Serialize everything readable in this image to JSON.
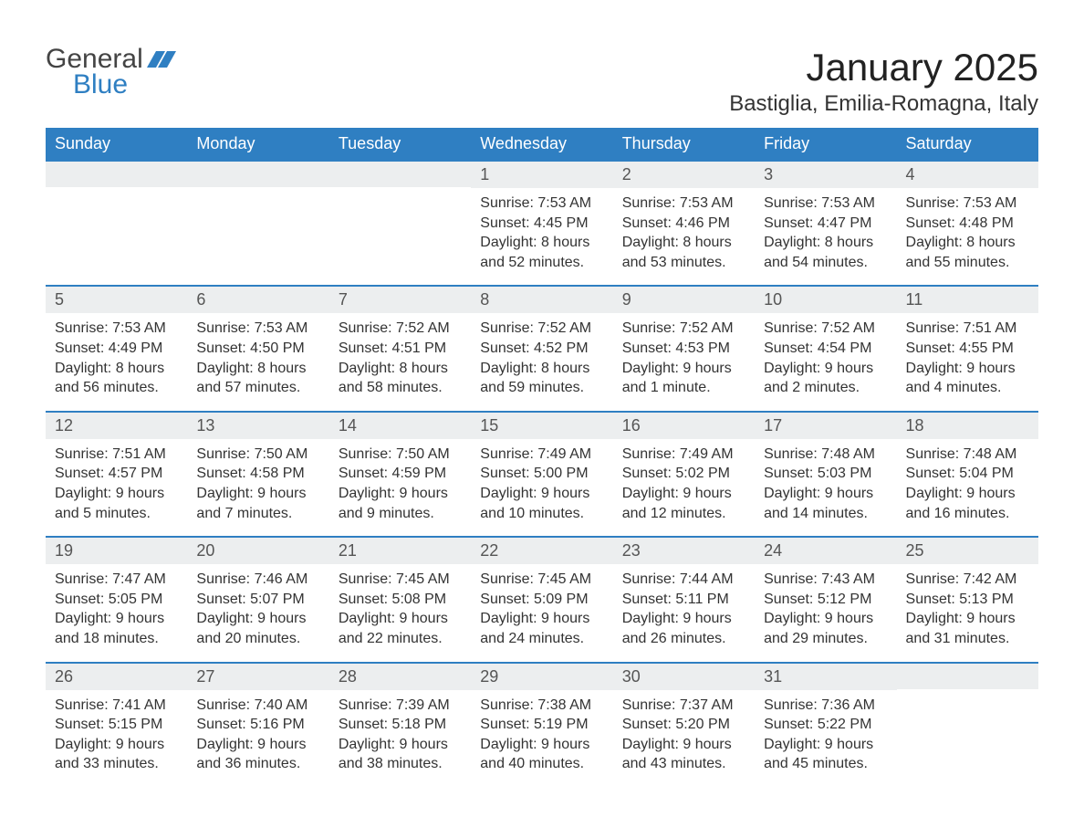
{
  "logo": {
    "general": "General",
    "blue": "Blue"
  },
  "title": "January 2025",
  "subtitle": "Bastiglia, Emilia-Romagna, Italy",
  "colors": {
    "header_bg": "#2f7fc2",
    "header_text": "#ffffff",
    "daynum_bg": "#eceeef",
    "daynum_text": "#555555",
    "body_text": "#333333",
    "rule": "#2f7fc2",
    "logo_blue": "#2f7fc2",
    "logo_dark": "#444444",
    "page_bg": "#ffffff"
  },
  "fonts": {
    "title_size_pt": 32,
    "subtitle_size_pt": 18,
    "dayheader_size_pt": 14,
    "daynum_size_pt": 14,
    "body_size_pt": 12
  },
  "day_headers": [
    "Sunday",
    "Monday",
    "Tuesday",
    "Wednesday",
    "Thursday",
    "Friday",
    "Saturday"
  ],
  "weeks": [
    [
      {
        "n": "",
        "sunrise": "",
        "sunset": "",
        "daylight": ""
      },
      {
        "n": "",
        "sunrise": "",
        "sunset": "",
        "daylight": ""
      },
      {
        "n": "",
        "sunrise": "",
        "sunset": "",
        "daylight": ""
      },
      {
        "n": "1",
        "sunrise": "Sunrise: 7:53 AM",
        "sunset": "Sunset: 4:45 PM",
        "daylight": "Daylight: 8 hours and 52 minutes."
      },
      {
        "n": "2",
        "sunrise": "Sunrise: 7:53 AM",
        "sunset": "Sunset: 4:46 PM",
        "daylight": "Daylight: 8 hours and 53 minutes."
      },
      {
        "n": "3",
        "sunrise": "Sunrise: 7:53 AM",
        "sunset": "Sunset: 4:47 PM",
        "daylight": "Daylight: 8 hours and 54 minutes."
      },
      {
        "n": "4",
        "sunrise": "Sunrise: 7:53 AM",
        "sunset": "Sunset: 4:48 PM",
        "daylight": "Daylight: 8 hours and 55 minutes."
      }
    ],
    [
      {
        "n": "5",
        "sunrise": "Sunrise: 7:53 AM",
        "sunset": "Sunset: 4:49 PM",
        "daylight": "Daylight: 8 hours and 56 minutes."
      },
      {
        "n": "6",
        "sunrise": "Sunrise: 7:53 AM",
        "sunset": "Sunset: 4:50 PM",
        "daylight": "Daylight: 8 hours and 57 minutes."
      },
      {
        "n": "7",
        "sunrise": "Sunrise: 7:52 AM",
        "sunset": "Sunset: 4:51 PM",
        "daylight": "Daylight: 8 hours and 58 minutes."
      },
      {
        "n": "8",
        "sunrise": "Sunrise: 7:52 AM",
        "sunset": "Sunset: 4:52 PM",
        "daylight": "Daylight: 8 hours and 59 minutes."
      },
      {
        "n": "9",
        "sunrise": "Sunrise: 7:52 AM",
        "sunset": "Sunset: 4:53 PM",
        "daylight": "Daylight: 9 hours and 1 minute."
      },
      {
        "n": "10",
        "sunrise": "Sunrise: 7:52 AM",
        "sunset": "Sunset: 4:54 PM",
        "daylight": "Daylight: 9 hours and 2 minutes."
      },
      {
        "n": "11",
        "sunrise": "Sunrise: 7:51 AM",
        "sunset": "Sunset: 4:55 PM",
        "daylight": "Daylight: 9 hours and 4 minutes."
      }
    ],
    [
      {
        "n": "12",
        "sunrise": "Sunrise: 7:51 AM",
        "sunset": "Sunset: 4:57 PM",
        "daylight": "Daylight: 9 hours and 5 minutes."
      },
      {
        "n": "13",
        "sunrise": "Sunrise: 7:50 AM",
        "sunset": "Sunset: 4:58 PM",
        "daylight": "Daylight: 9 hours and 7 minutes."
      },
      {
        "n": "14",
        "sunrise": "Sunrise: 7:50 AM",
        "sunset": "Sunset: 4:59 PM",
        "daylight": "Daylight: 9 hours and 9 minutes."
      },
      {
        "n": "15",
        "sunrise": "Sunrise: 7:49 AM",
        "sunset": "Sunset: 5:00 PM",
        "daylight": "Daylight: 9 hours and 10 minutes."
      },
      {
        "n": "16",
        "sunrise": "Sunrise: 7:49 AM",
        "sunset": "Sunset: 5:02 PM",
        "daylight": "Daylight: 9 hours and 12 minutes."
      },
      {
        "n": "17",
        "sunrise": "Sunrise: 7:48 AM",
        "sunset": "Sunset: 5:03 PM",
        "daylight": "Daylight: 9 hours and 14 minutes."
      },
      {
        "n": "18",
        "sunrise": "Sunrise: 7:48 AM",
        "sunset": "Sunset: 5:04 PM",
        "daylight": "Daylight: 9 hours and 16 minutes."
      }
    ],
    [
      {
        "n": "19",
        "sunrise": "Sunrise: 7:47 AM",
        "sunset": "Sunset: 5:05 PM",
        "daylight": "Daylight: 9 hours and 18 minutes."
      },
      {
        "n": "20",
        "sunrise": "Sunrise: 7:46 AM",
        "sunset": "Sunset: 5:07 PM",
        "daylight": "Daylight: 9 hours and 20 minutes."
      },
      {
        "n": "21",
        "sunrise": "Sunrise: 7:45 AM",
        "sunset": "Sunset: 5:08 PM",
        "daylight": "Daylight: 9 hours and 22 minutes."
      },
      {
        "n": "22",
        "sunrise": "Sunrise: 7:45 AM",
        "sunset": "Sunset: 5:09 PM",
        "daylight": "Daylight: 9 hours and 24 minutes."
      },
      {
        "n": "23",
        "sunrise": "Sunrise: 7:44 AM",
        "sunset": "Sunset: 5:11 PM",
        "daylight": "Daylight: 9 hours and 26 minutes."
      },
      {
        "n": "24",
        "sunrise": "Sunrise: 7:43 AM",
        "sunset": "Sunset: 5:12 PM",
        "daylight": "Daylight: 9 hours and 29 minutes."
      },
      {
        "n": "25",
        "sunrise": "Sunrise: 7:42 AM",
        "sunset": "Sunset: 5:13 PM",
        "daylight": "Daylight: 9 hours and 31 minutes."
      }
    ],
    [
      {
        "n": "26",
        "sunrise": "Sunrise: 7:41 AM",
        "sunset": "Sunset: 5:15 PM",
        "daylight": "Daylight: 9 hours and 33 minutes."
      },
      {
        "n": "27",
        "sunrise": "Sunrise: 7:40 AM",
        "sunset": "Sunset: 5:16 PM",
        "daylight": "Daylight: 9 hours and 36 minutes."
      },
      {
        "n": "28",
        "sunrise": "Sunrise: 7:39 AM",
        "sunset": "Sunset: 5:18 PM",
        "daylight": "Daylight: 9 hours and 38 minutes."
      },
      {
        "n": "29",
        "sunrise": "Sunrise: 7:38 AM",
        "sunset": "Sunset: 5:19 PM",
        "daylight": "Daylight: 9 hours and 40 minutes."
      },
      {
        "n": "30",
        "sunrise": "Sunrise: 7:37 AM",
        "sunset": "Sunset: 5:20 PM",
        "daylight": "Daylight: 9 hours and 43 minutes."
      },
      {
        "n": "31",
        "sunrise": "Sunrise: 7:36 AM",
        "sunset": "Sunset: 5:22 PM",
        "daylight": "Daylight: 9 hours and 45 minutes."
      },
      {
        "n": "",
        "sunrise": "",
        "sunset": "",
        "daylight": ""
      }
    ]
  ]
}
